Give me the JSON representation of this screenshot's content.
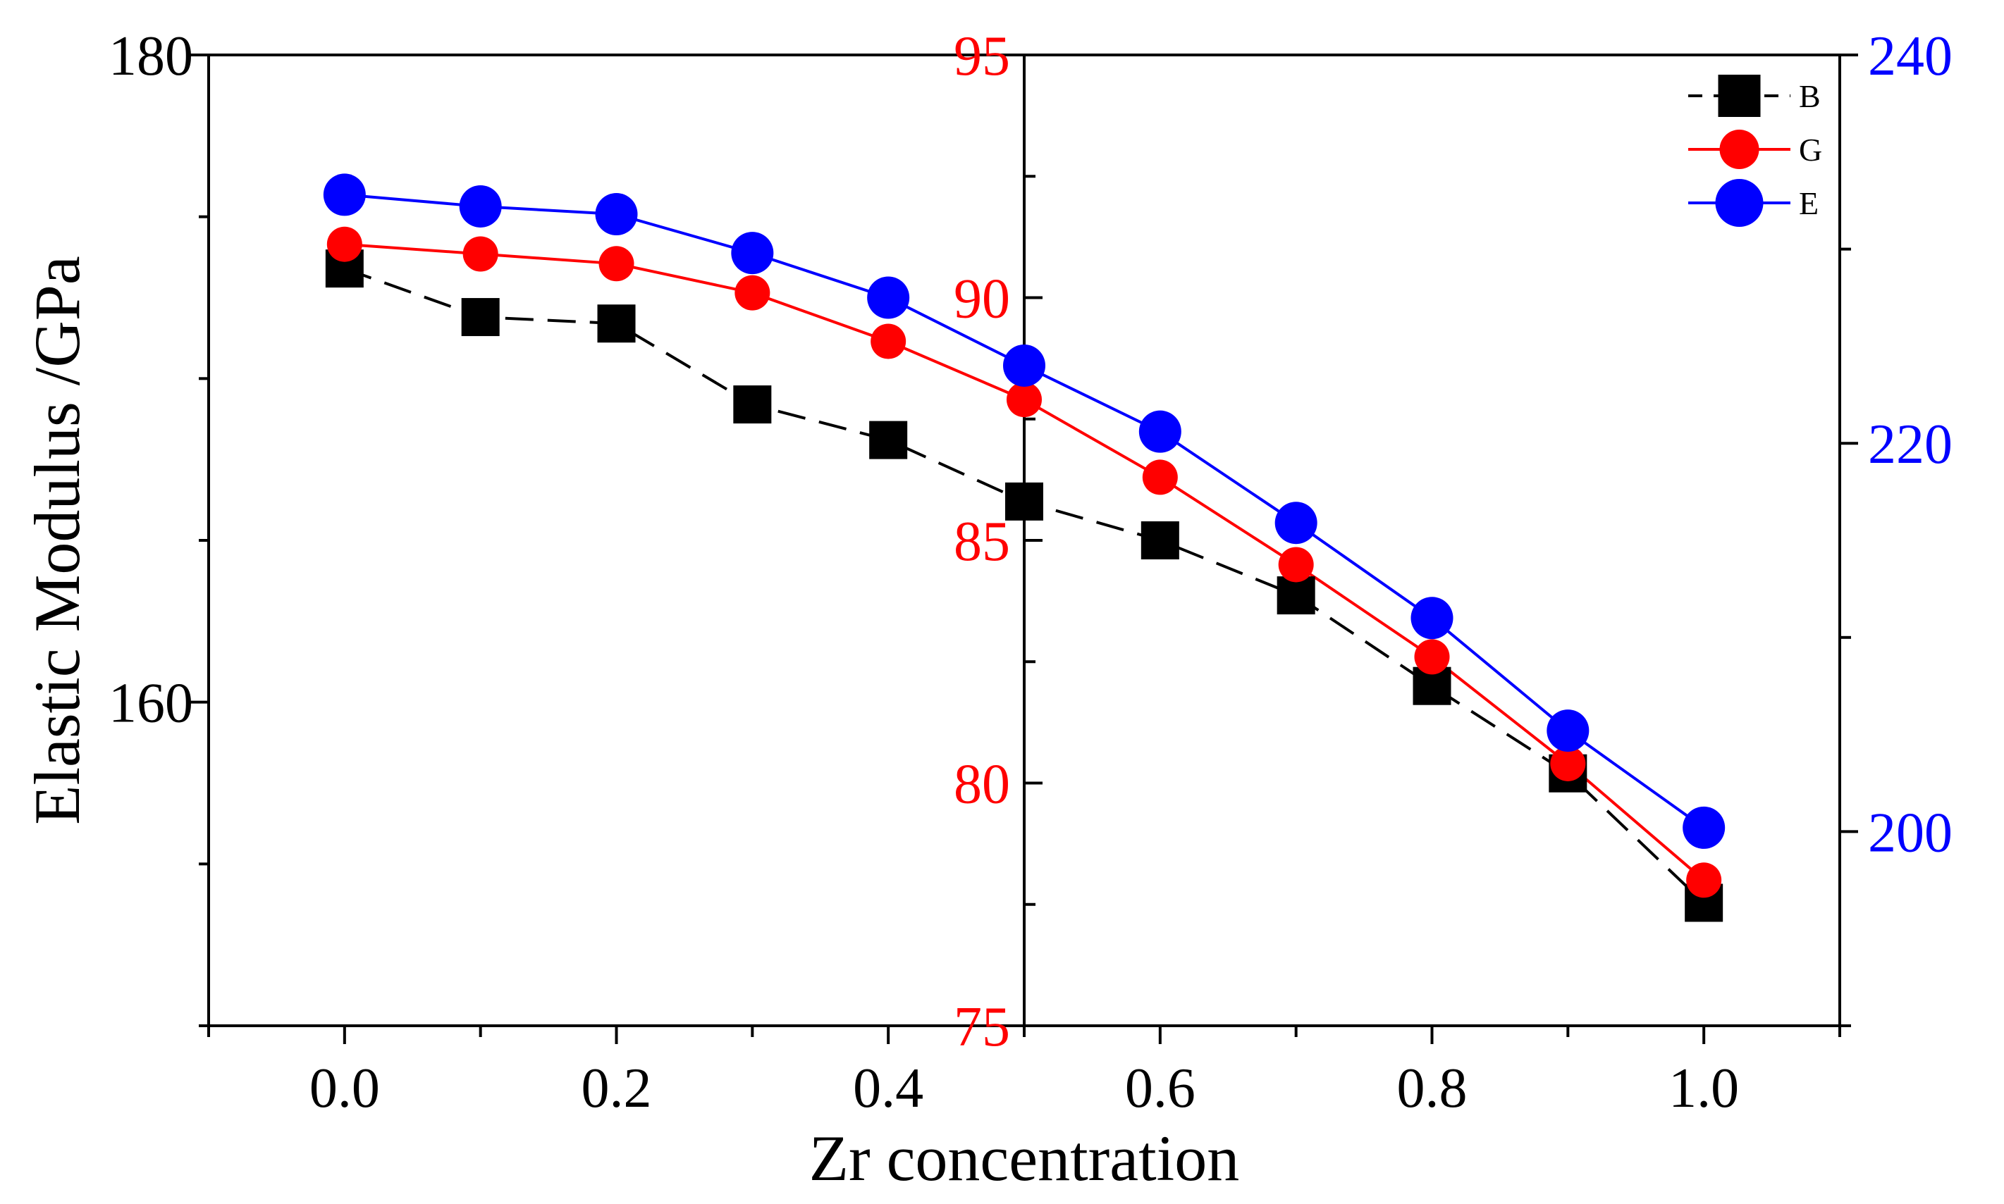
{
  "chart_data": {
    "type": "line",
    "title": "",
    "xlabel": "Zr concentration",
    "ylabel": "Elastic Modulus /GPa",
    "x": [
      0.0,
      0.1,
      0.2,
      0.3,
      0.4,
      0.5,
      0.6,
      0.7,
      0.8,
      0.9,
      1.0
    ],
    "xlim": [
      -0.1,
      1.1
    ],
    "xticks": [
      "0.0",
      "0.2",
      "0.4",
      "0.6",
      "0.8",
      "1.0"
    ],
    "axes": {
      "left": {
        "ylim": [
          150,
          180
        ],
        "ticks": [
          "160",
          "180"
        ],
        "color": "#000000"
      },
      "middle": {
        "ylim": [
          75,
          95
        ],
        "ticks": [
          "75",
          "80",
          "85",
          "90",
          "95"
        ],
        "color": "#ff0000"
      },
      "right": {
        "ylim": [
          190,
          240
        ],
        "ticks": [
          "200",
          "220",
          "240"
        ],
        "color": "#0000ff"
      }
    },
    "series": [
      {
        "name": "B",
        "axis": "left",
        "color": "#000000",
        "marker": "square",
        "line": "dashed",
        "values": [
          173.4,
          171.9,
          171.7,
          169.2,
          168.1,
          166.2,
          165.0,
          163.3,
          160.5,
          157.8,
          153.8
        ]
      },
      {
        "name": "G",
        "axis": "middle",
        "color": "#ff0000",
        "marker": "circle",
        "line": "solid",
        "values": [
          91.1,
          90.9,
          90.7,
          90.1,
          89.1,
          87.9,
          86.3,
          84.5,
          82.6,
          80.4,
          78.0
        ]
      },
      {
        "name": "E",
        "axis": "right",
        "color": "#0000ff",
        "marker": "circle",
        "line": "solid",
        "values": [
          232.8,
          232.2,
          231.8,
          229.8,
          227.5,
          224.0,
          220.6,
          215.9,
          211.0,
          205.2,
          200.2
        ]
      }
    ],
    "legend": {
      "position": "top-right",
      "entries": [
        "B",
        "G",
        "E"
      ]
    },
    "grid": false
  }
}
